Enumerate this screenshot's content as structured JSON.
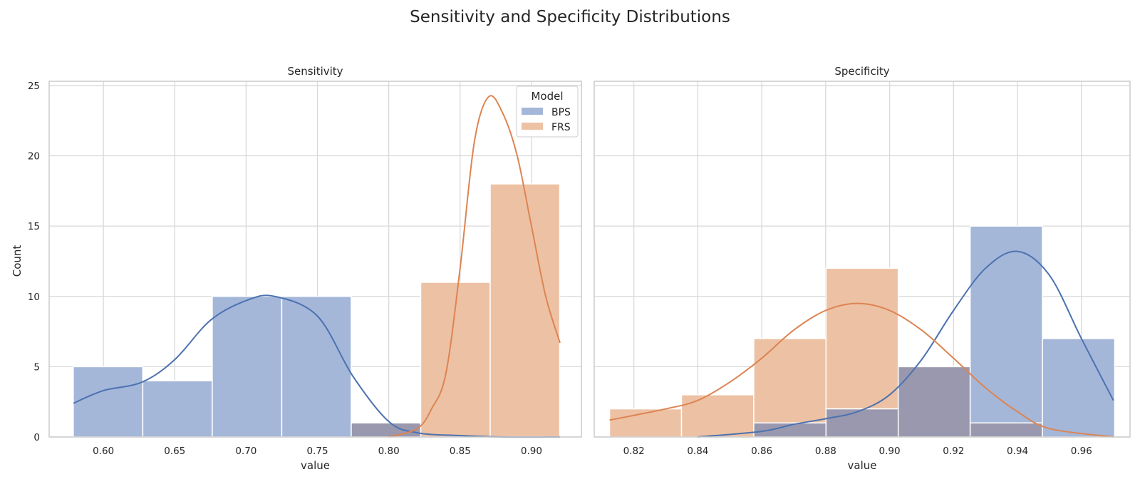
{
  "figure_title": "Sensitivity and Specificity Distributions",
  "shared_ylabel": "Count",
  "legend": {
    "title": "Model",
    "placement": "upper right (Sensitivity panel)",
    "items": [
      {
        "label": "BPS",
        "color": "#4C72B0"
      },
      {
        "label": "FRS",
        "color": "#DD8452"
      }
    ]
  },
  "colors": {
    "BPS_fill": "#A4B7D9",
    "FRS_fill": "#EDC1A4",
    "overlap_fill": "#9A98AE",
    "BPS_line": "#4C72B0",
    "FRS_line": "#DD8452",
    "grid": "#D9D9D9",
    "axes_border": "#CCCCCC"
  },
  "chart_data": [
    {
      "type": "bar",
      "title": "Sensitivity",
      "xlabel": "value",
      "ylabel": "Count",
      "xlim": [
        0.562,
        0.935
      ],
      "ylim": [
        0,
        25.3
      ],
      "xticks": [
        "0.60",
        "0.65",
        "0.70",
        "0.75",
        "0.80",
        "0.85",
        "0.90"
      ],
      "xtick_values": [
        0.6,
        0.65,
        0.7,
        0.75,
        0.8,
        0.85,
        0.9
      ],
      "yticks": [
        "0",
        "5",
        "10",
        "15",
        "20",
        "25"
      ],
      "ytick_values": [
        0,
        5,
        10,
        15,
        20,
        25
      ],
      "grid": true,
      "bin_edges": [
        0.5789,
        0.6276,
        0.6763,
        0.725,
        0.7737,
        0.8224,
        0.8711,
        0.9198
      ],
      "series": [
        {
          "name": "BPS",
          "values": [
            5,
            4,
            10,
            10,
            1,
            0,
            0
          ]
        },
        {
          "name": "FRS",
          "values": [
            0,
            0,
            0,
            0,
            1,
            11,
            18
          ]
        }
      ],
      "kde": [
        {
          "name": "BPS",
          "x": [
            0.579,
            0.6,
            0.627,
            0.65,
            0.675,
            0.7,
            0.72,
            0.75,
            0.775,
            0.8,
            0.82,
            0.85,
            0.88,
            0.92
          ],
          "y": [
            2.4,
            3.3,
            3.9,
            5.5,
            8.3,
            9.7,
            10.0,
            8.6,
            4.3,
            1.1,
            0.3,
            0.1,
            0.0,
            0.0
          ]
        },
        {
          "name": "FRS",
          "x": [
            0.8,
            0.82,
            0.83,
            0.84,
            0.85,
            0.86,
            0.87,
            0.88,
            0.89,
            0.9,
            0.91,
            0.92
          ],
          "y": [
            0.0,
            0.6,
            2.0,
            4.5,
            12.0,
            21.0,
            24.2,
            23.0,
            20.0,
            15.0,
            10.0,
            6.7
          ]
        }
      ]
    },
    {
      "type": "bar",
      "title": "Specificity",
      "xlabel": "value",
      "ylabel": "",
      "xlim": [
        0.8076,
        0.9752
      ],
      "ylim": [
        0,
        25.3
      ],
      "xticks": [
        "0.82",
        "0.84",
        "0.86",
        "0.88",
        "0.90",
        "0.92",
        "0.94",
        "0.96"
      ],
      "xtick_values": [
        0.82,
        0.84,
        0.86,
        0.88,
        0.9,
        0.92,
        0.94,
        0.96
      ],
      "yticks": [
        "0",
        "5",
        "10",
        "15",
        "20",
        "25"
      ],
      "ytick_values": [
        0,
        5,
        10,
        15,
        20,
        25
      ],
      "grid": true,
      "bin_edges": [
        0.8124,
        0.8349,
        0.8575,
        0.8801,
        0.9027,
        0.9252,
        0.9478,
        0.9704
      ],
      "series": [
        {
          "name": "BPS",
          "values": [
            0,
            0,
            1,
            2,
            5,
            15,
            7
          ]
        },
        {
          "name": "FRS",
          "values": [
            2,
            3,
            7,
            12,
            5,
            1,
            0
          ]
        }
      ],
      "kde": [
        {
          "name": "BPS",
          "x": [
            0.84,
            0.86,
            0.87,
            0.88,
            0.89,
            0.9,
            0.91,
            0.92,
            0.93,
            0.94,
            0.95,
            0.96,
            0.97
          ],
          "y": [
            0.0,
            0.4,
            0.9,
            1.3,
            1.8,
            3.0,
            5.5,
            9.0,
            12.0,
            13.2,
            11.5,
            7.0,
            2.6
          ]
        },
        {
          "name": "FRS",
          "x": [
            0.8124,
            0.83,
            0.84,
            0.85,
            0.86,
            0.87,
            0.88,
            0.89,
            0.9,
            0.91,
            0.92,
            0.93,
            0.94,
            0.95,
            0.97
          ],
          "y": [
            1.2,
            2.0,
            2.6,
            3.9,
            5.6,
            7.6,
            9.0,
            9.5,
            9.0,
            7.6,
            5.6,
            3.5,
            1.8,
            0.6,
            0.0
          ]
        }
      ]
    }
  ]
}
